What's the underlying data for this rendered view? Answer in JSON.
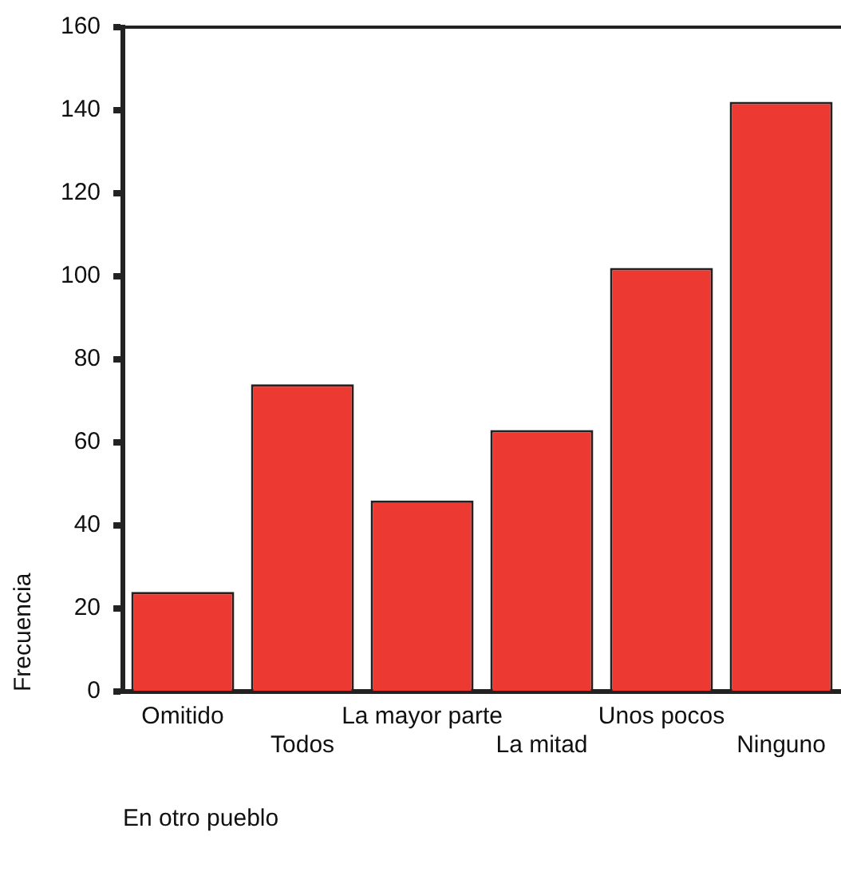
{
  "chart_data": {
    "type": "bar",
    "xlabel": "En otro pueblo",
    "ylabel": "Frecuencia",
    "categories": [
      "Omitido",
      "Todos",
      "La mayor parte",
      "La mitad",
      "Unos pocos",
      "Ninguno"
    ],
    "values": [
      24,
      74,
      46,
      63,
      102,
      142
    ],
    "color": "#ec3a32",
    "ylim": [
      0,
      160
    ],
    "yticks": [
      0,
      20,
      40,
      60,
      80,
      100,
      120,
      140,
      160
    ],
    "grid": false,
    "legend": false
  }
}
